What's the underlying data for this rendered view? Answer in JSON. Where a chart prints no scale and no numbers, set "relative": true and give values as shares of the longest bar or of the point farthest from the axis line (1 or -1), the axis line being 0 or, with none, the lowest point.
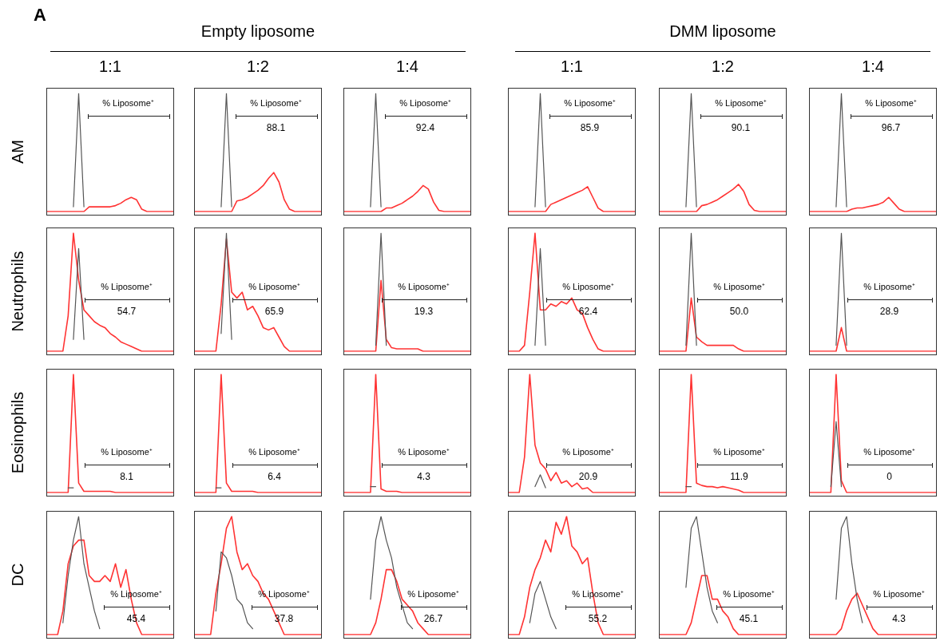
{
  "chart_data": [
    {
      "type": "line",
      "relative": true,
      "tick_labels": false,
      "title": "1:1",
      "ylabel": "AM",
      "annotations": [
        "A",
        "% Liposome⁺"
      ],
      "categories": [
        null,
        null,
        null,
        null,
        null,
        null,
        null,
        null,
        null,
        null,
        null,
        null,
        null,
        null,
        null,
        null,
        null,
        null,
        null,
        null,
        null,
        null,
        null,
        null,
        null
      ],
      "series": [
        {
          "color": "#555555",
          "values": [
            null,
            null,
            null,
            null,
            null,
            0.04,
            1,
            0.04,
            null,
            null,
            null,
            null,
            null,
            null,
            null,
            null,
            null,
            null,
            null,
            null,
            null,
            null,
            null,
            null,
            null
          ]
        },
        {
          "color": "#ff3333",
          "values": [
            0,
            0,
            0,
            0,
            0,
            0,
            0,
            0,
            0.04,
            0.04,
            0.04,
            0.04,
            0.04,
            0.05,
            0.07,
            0.1,
            0.12,
            0.1,
            0.02,
            0,
            0,
            0,
            0,
            0,
            0
          ]
        }
      ]
    },
    {
      "type": "line",
      "relative": true,
      "tick_labels": false,
      "title": "1:2",
      "subtitle": "Empty liposome",
      "annotations": [
        "% Liposome⁺",
        "88.1"
      ],
      "categories": [
        null,
        null,
        null,
        null,
        null,
        null,
        null,
        null,
        null,
        null,
        null,
        null,
        null,
        null,
        null,
        null,
        null,
        null,
        null,
        null,
        null,
        null,
        null,
        null,
        null
      ],
      "series": [
        {
          "color": "#555555",
          "values": [
            null,
            null,
            null,
            null,
            null,
            0.04,
            1,
            0.04,
            null,
            null,
            null,
            null,
            null,
            null,
            null,
            null,
            null,
            null,
            null,
            null,
            null,
            null,
            null,
            null,
            null
          ]
        },
        {
          "color": "#ff3333",
          "values": [
            0,
            0,
            0,
            0,
            0,
            0,
            0,
            0,
            0.09,
            0.1,
            0.12,
            0.15,
            0.18,
            0.22,
            0.28,
            0.33,
            0.25,
            0.1,
            0.02,
            0,
            0,
            0,
            0,
            0,
            0
          ]
        }
      ]
    },
    {
      "type": "line",
      "relative": true,
      "tick_labels": false,
      "title": "1:4",
      "annotations": [
        "% Liposome⁺",
        "92.4"
      ],
      "categories": [
        null,
        null,
        null,
        null,
        null,
        null,
        null,
        null,
        null,
        null,
        null,
        null,
        null,
        null,
        null,
        null,
        null,
        null,
        null,
        null,
        null,
        null,
        null,
        null,
        null
      ],
      "series": [
        {
          "color": "#555555",
          "values": [
            null,
            null,
            null,
            null,
            null,
            0.04,
            1,
            0.04,
            null,
            null,
            null,
            null,
            null,
            null,
            null,
            null,
            null,
            null,
            null,
            null,
            null,
            null,
            null,
            null,
            null
          ]
        },
        {
          "color": "#ff3333",
          "values": [
            0,
            0,
            0,
            0,
            0,
            0,
            0,
            0,
            0.03,
            0.03,
            0.05,
            0.07,
            0.1,
            0.13,
            0.17,
            0.22,
            0.19,
            0.08,
            0.01,
            0,
            0,
            0,
            0,
            0,
            0
          ]
        }
      ]
    },
    {
      "type": "line",
      "relative": true,
      "tick_labels": false,
      "title": "1:1",
      "annotations": [
        "% Liposome⁺",
        "85.9"
      ],
      "categories": [
        null,
        null,
        null,
        null,
        null,
        null,
        null,
        null,
        null,
        null,
        null,
        null,
        null,
        null,
        null,
        null,
        null,
        null,
        null,
        null,
        null,
        null,
        null,
        null,
        null
      ],
      "series": [
        {
          "color": "#555555",
          "values": [
            null,
            null,
            null,
            null,
            null,
            0.04,
            1,
            0.04,
            null,
            null,
            null,
            null,
            null,
            null,
            null,
            null,
            null,
            null,
            null,
            null,
            null,
            null,
            null,
            null,
            null
          ]
        },
        {
          "color": "#ff3333",
          "values": [
            0,
            0,
            0,
            0,
            0,
            0,
            0,
            0,
            0.06,
            0.08,
            0.1,
            0.12,
            0.14,
            0.16,
            0.18,
            0.21,
            0.12,
            0.03,
            0,
            0,
            0,
            0,
            0,
            0,
            0
          ]
        }
      ]
    },
    {
      "type": "line",
      "relative": true,
      "tick_labels": false,
      "title": "1:2",
      "subtitle": "DMM liposome",
      "annotations": [
        "% Liposome⁺",
        "90.1"
      ],
      "categories": [
        null,
        null,
        null,
        null,
        null,
        null,
        null,
        null,
        null,
        null,
        null,
        null,
        null,
        null,
        null,
        null,
        null,
        null,
        null,
        null,
        null,
        null,
        null,
        null,
        null
      ],
      "series": [
        {
          "color": "#555555",
          "values": [
            null,
            null,
            null,
            null,
            null,
            0.04,
            1,
            0.04,
            null,
            null,
            null,
            null,
            null,
            null,
            null,
            null,
            null,
            null,
            null,
            null,
            null,
            null,
            null,
            null,
            null
          ]
        },
        {
          "color": "#ff3333",
          "values": [
            0,
            0,
            0,
            0,
            0,
            0,
            0,
            0,
            0.05,
            0.06,
            0.08,
            0.1,
            0.13,
            0.16,
            0.19,
            0.23,
            0.17,
            0.06,
            0.01,
            0,
            0,
            0,
            0,
            0,
            0
          ]
        }
      ]
    },
    {
      "type": "line",
      "relative": true,
      "tick_labels": false,
      "title": "1:4",
      "annotations": [
        "% Liposome⁺",
        "96.7"
      ],
      "categories": [
        null,
        null,
        null,
        null,
        null,
        null,
        null,
        null,
        null,
        null,
        null,
        null,
        null,
        null,
        null,
        null,
        null,
        null,
        null,
        null,
        null,
        null,
        null,
        null,
        null
      ],
      "series": [
        {
          "color": "#555555",
          "values": [
            null,
            null,
            null,
            null,
            null,
            0.04,
            1,
            0.04,
            null,
            null,
            null,
            null,
            null,
            null,
            null,
            null,
            null,
            null,
            null,
            null,
            null,
            null,
            null,
            null,
            null
          ]
        },
        {
          "color": "#ff3333",
          "values": [
            0,
            0,
            0,
            0,
            0,
            0,
            0,
            0,
            0.02,
            0.03,
            0.03,
            0.04,
            0.05,
            0.06,
            0.08,
            0.12,
            0.07,
            0.02,
            0,
            0,
            0,
            0,
            0,
            0,
            0
          ]
        }
      ]
    },
    {
      "type": "line",
      "relative": true,
      "tick_labels": false,
      "ylabel": "Neutrophils",
      "annotations": [
        "% Liposome⁺",
        "54.7"
      ],
      "categories": [
        null,
        null,
        null,
        null,
        null,
        null,
        null,
        null,
        null,
        null,
        null,
        null,
        null,
        null,
        null,
        null,
        null,
        null,
        null,
        null,
        null,
        null,
        null,
        null,
        null
      ],
      "series": [
        {
          "color": "#555555",
          "values": [
            null,
            null,
            null,
            null,
            null,
            0.1,
            0.87,
            0.1,
            null,
            null,
            null,
            null,
            null,
            null,
            null,
            null,
            null,
            null,
            null,
            null,
            null,
            null,
            null,
            null,
            null
          ]
        },
        {
          "color": "#ff3333",
          "values": [
            0,
            0,
            0,
            0,
            0.3,
            1,
            0.6,
            0.35,
            0.3,
            0.25,
            0.22,
            0.2,
            0.15,
            0.12,
            0.08,
            0.06,
            0.04,
            0.02,
            0,
            0,
            0,
            0,
            0,
            0,
            0
          ]
        }
      ]
    },
    {
      "type": "line",
      "relative": true,
      "tick_labels": false,
      "annotations": [
        "% Liposome⁺",
        "65.9"
      ],
      "categories": [
        null,
        null,
        null,
        null,
        null,
        null,
        null,
        null,
        null,
        null,
        null,
        null,
        null,
        null,
        null,
        null,
        null,
        null,
        null,
        null,
        null,
        null,
        null,
        null,
        null
      ],
      "series": [
        {
          "color": "#555555",
          "values": [
            null,
            null,
            null,
            null,
            null,
            0.15,
            1,
            0.1,
            null,
            null,
            null,
            null,
            null,
            null,
            null,
            null,
            null,
            null,
            null,
            null,
            null,
            null,
            null,
            null,
            null
          ]
        },
        {
          "color": "#ff3333",
          "values": [
            0,
            0,
            0,
            0,
            0,
            0.4,
            0.95,
            0.5,
            0.45,
            0.5,
            0.35,
            0.38,
            0.3,
            0.2,
            0.18,
            0.2,
            0.12,
            0.04,
            0,
            0,
            0,
            0,
            0,
            0,
            0
          ]
        }
      ]
    },
    {
      "type": "line",
      "relative": true,
      "tick_labels": false,
      "annotations": [
        "% Liposome⁺",
        "19.3"
      ],
      "categories": [
        null,
        null,
        null,
        null,
        null,
        null,
        null,
        null,
        null,
        null,
        null,
        null,
        null,
        null,
        null,
        null,
        null,
        null,
        null,
        null,
        null,
        null,
        null,
        null,
        null
      ],
      "series": [
        {
          "color": "#555555",
          "values": [
            null,
            null,
            null,
            null,
            null,
            null,
            0.05,
            1,
            0.05,
            null,
            null,
            null,
            null,
            null,
            null,
            null,
            null,
            null,
            null,
            null,
            null,
            null,
            null,
            null,
            null
          ]
        },
        {
          "color": "#ff3333",
          "values": [
            0,
            0,
            0,
            0,
            0,
            0,
            0,
            0.6,
            0.1,
            0.03,
            0.02,
            0.02,
            0.02,
            0.02,
            0.02,
            0,
            0,
            0,
            0,
            0,
            0,
            0,
            0,
            0,
            0
          ]
        }
      ]
    },
    {
      "type": "line",
      "relative": true,
      "tick_labels": false,
      "annotations": [
        "% Liposome⁺",
        "62.4"
      ],
      "categories": [
        null,
        null,
        null,
        null,
        null,
        null,
        null,
        null,
        null,
        null,
        null,
        null,
        null,
        null,
        null,
        null,
        null,
        null,
        null,
        null,
        null,
        null,
        null,
        null,
        null
      ],
      "series": [
        {
          "color": "#555555",
          "values": [
            null,
            null,
            null,
            null,
            null,
            0.05,
            0.87,
            0.05,
            null,
            null,
            null,
            null,
            null,
            null,
            null,
            null,
            null,
            null,
            null,
            null,
            null,
            null,
            null,
            null,
            null
          ]
        },
        {
          "color": "#ff3333",
          "values": [
            0,
            0,
            0,
            0.05,
            0.5,
            1,
            0.35,
            0.35,
            0.4,
            0.38,
            0.42,
            0.4,
            0.45,
            0.35,
            0.32,
            0.2,
            0.1,
            0.02,
            0,
            0,
            0,
            0,
            0,
            0,
            0
          ]
        }
      ]
    },
    {
      "type": "line",
      "relative": true,
      "tick_labels": false,
      "annotations": [
        "% Liposome⁺",
        "50.0"
      ],
      "categories": [
        null,
        null,
        null,
        null,
        null,
        null,
        null,
        null,
        null,
        null,
        null,
        null,
        null,
        null,
        null,
        null,
        null,
        null,
        null,
        null,
        null,
        null,
        null,
        null,
        null
      ],
      "series": [
        {
          "color": "#555555",
          "values": [
            null,
            null,
            null,
            null,
            null,
            0.05,
            1,
            0.05,
            null,
            null,
            null,
            null,
            null,
            null,
            null,
            null,
            null,
            null,
            null,
            null,
            null,
            null,
            null,
            null,
            null
          ]
        },
        {
          "color": "#ff3333",
          "values": [
            0,
            0,
            0,
            0,
            0,
            0,
            0.45,
            0.12,
            0.08,
            0.05,
            0.05,
            0.05,
            0.05,
            0.05,
            0.05,
            0.02,
            0,
            0,
            0,
            0,
            0,
            0,
            0,
            0,
            0
          ]
        }
      ]
    },
    {
      "type": "line",
      "relative": true,
      "tick_labels": false,
      "annotations": [
        "% Liposome⁺",
        "28.9"
      ],
      "categories": [
        null,
        null,
        null,
        null,
        null,
        null,
        null,
        null,
        null,
        null,
        null,
        null,
        null,
        null,
        null,
        null,
        null,
        null,
        null,
        null,
        null,
        null,
        null,
        null,
        null
      ],
      "series": [
        {
          "color": "#555555",
          "values": [
            null,
            null,
            null,
            null,
            null,
            0.05,
            1,
            0.05,
            null,
            null,
            null,
            null,
            null,
            null,
            null,
            null,
            null,
            null,
            null,
            null,
            null,
            null,
            null,
            null,
            null
          ]
        },
        {
          "color": "#ff3333",
          "values": [
            0,
            0,
            0,
            0,
            0,
            0,
            0.2,
            0,
            0,
            0,
            0,
            0,
            0,
            0,
            0,
            0,
            0,
            0,
            0,
            0,
            0,
            0,
            0,
            0,
            0
          ]
        }
      ]
    },
    {
      "type": "line",
      "relative": true,
      "tick_labels": false,
      "ylabel": "Eosinophils",
      "annotations": [
        "% Liposome⁺",
        "8.1"
      ],
      "categories": [
        null,
        null,
        null,
        null,
        null,
        null,
        null,
        null,
        null,
        null,
        null,
        null,
        null,
        null,
        null,
        null,
        null,
        null,
        null,
        null,
        null,
        null,
        null,
        null,
        null
      ],
      "series": [
        {
          "color": "#555555",
          "values": [
            null,
            null,
            null,
            null,
            0.04,
            0.04,
            null,
            null,
            null,
            null,
            null,
            null,
            null,
            null,
            null,
            null,
            null,
            null,
            null,
            null,
            null,
            null,
            null,
            null,
            null
          ]
        },
        {
          "color": "#ff3333",
          "values": [
            0,
            0,
            0,
            0,
            0,
            1,
            0.08,
            0.01,
            0.01,
            0.01,
            0.01,
            0.01,
            0.01,
            0,
            0,
            0,
            0,
            0,
            0,
            0,
            0,
            0,
            0,
            0,
            0
          ]
        }
      ]
    },
    {
      "type": "line",
      "relative": true,
      "tick_labels": false,
      "annotations": [
        "% Liposome⁺",
        "6.4"
      ],
      "categories": [
        null,
        null,
        null,
        null,
        null,
        null,
        null,
        null,
        null,
        null,
        null,
        null,
        null,
        null,
        null,
        null,
        null,
        null,
        null,
        null,
        null,
        null,
        null,
        null,
        null
      ],
      "series": [
        {
          "color": "#555555",
          "values": [
            null,
            null,
            null,
            null,
            0.04,
            0.04,
            null,
            null,
            null,
            null,
            null,
            null,
            null,
            null,
            null,
            null,
            null,
            null,
            null,
            null,
            null,
            null,
            null,
            null,
            null
          ]
        },
        {
          "color": "#ff3333",
          "values": [
            0,
            0,
            0,
            0,
            0,
            1,
            0.08,
            0.01,
            0.01,
            0.01,
            0.01,
            0.01,
            0,
            0,
            0,
            0,
            0,
            0,
            0,
            0,
            0,
            0,
            0,
            0,
            0
          ]
        }
      ]
    },
    {
      "type": "line",
      "relative": true,
      "tick_labels": false,
      "annotations": [
        "% Liposome⁺",
        "4.3"
      ],
      "categories": [
        null,
        null,
        null,
        null,
        null,
        null,
        null,
        null,
        null,
        null,
        null,
        null,
        null,
        null,
        null,
        null,
        null,
        null,
        null,
        null,
        null,
        null,
        null,
        null,
        null
      ],
      "series": [
        {
          "color": "#555555",
          "values": [
            null,
            null,
            null,
            null,
            null,
            0.05,
            0.05,
            null,
            null,
            null,
            null,
            null,
            null,
            null,
            null,
            null,
            null,
            null,
            null,
            null,
            null,
            null,
            null,
            null,
            null
          ]
        },
        {
          "color": "#ff3333",
          "values": [
            0,
            0,
            0,
            0,
            0,
            0,
            1,
            0.03,
            0.01,
            0.01,
            0.01,
            0,
            0,
            0,
            0,
            0,
            0,
            0,
            0,
            0,
            0,
            0,
            0,
            0,
            0
          ]
        }
      ]
    },
    {
      "type": "line",
      "relative": true,
      "tick_labels": false,
      "annotations": [
        "% Liposome⁺",
        "20.9"
      ],
      "categories": [
        null,
        null,
        null,
        null,
        null,
        null,
        null,
        null,
        null,
        null,
        null,
        null,
        null,
        null,
        null,
        null,
        null,
        null,
        null,
        null,
        null,
        null,
        null,
        null,
        null
      ],
      "series": [
        {
          "color": "#555555",
          "values": [
            null,
            null,
            null,
            null,
            null,
            0.05,
            0.15,
            0.04,
            null,
            null,
            null,
            null,
            null,
            null,
            null,
            null,
            null,
            null,
            null,
            null,
            null,
            null,
            null,
            null,
            null
          ]
        },
        {
          "color": "#ff3333",
          "values": [
            0,
            0,
            0,
            0.3,
            1,
            0.4,
            0.25,
            0.2,
            0.1,
            0.17,
            0.08,
            0.1,
            0.05,
            0.08,
            0.03,
            0.04,
            0,
            0,
            0,
            0,
            0,
            0,
            0,
            0,
            0
          ]
        }
      ]
    },
    {
      "type": "line",
      "relative": true,
      "tick_labels": false,
      "annotations": [
        "% Liposome⁺",
        "11.9"
      ],
      "categories": [
        null,
        null,
        null,
        null,
        null,
        null,
        null,
        null,
        null,
        null,
        null,
        null,
        null,
        null,
        null,
        null,
        null,
        null,
        null,
        null,
        null,
        null,
        null,
        null,
        null
      ],
      "series": [
        {
          "color": "#555555",
          "values": [
            null,
            null,
            null,
            null,
            null,
            0.05,
            0.05,
            null,
            null,
            null,
            null,
            null,
            null,
            null,
            null,
            null,
            null,
            null,
            null,
            null,
            null,
            null,
            null,
            null,
            null
          ]
        },
        {
          "color": "#ff3333",
          "values": [
            0,
            0,
            0,
            0,
            0,
            0,
            1,
            0.08,
            0.06,
            0.05,
            0.05,
            0.04,
            0.05,
            0.04,
            0.03,
            0.02,
            0,
            0,
            0,
            0,
            0,
            0,
            0,
            0,
            0
          ]
        }
      ]
    },
    {
      "type": "line",
      "relative": true,
      "tick_labels": false,
      "annotations": [
        "% Liposome⁺",
        "0"
      ],
      "categories": [
        null,
        null,
        null,
        null,
        null,
        null,
        null,
        null,
        null,
        null,
        null,
        null,
        null,
        null,
        null,
        null,
        null,
        null,
        null,
        null,
        null,
        null,
        null,
        null,
        null
      ],
      "series": [
        {
          "color": "#555555",
          "values": [
            null,
            null,
            null,
            null,
            0.05,
            0.6,
            0.05,
            null,
            null,
            null,
            null,
            null,
            null,
            null,
            null,
            null,
            null,
            null,
            null,
            null,
            null,
            null,
            null,
            null,
            null
          ]
        },
        {
          "color": "#ff3333",
          "values": [
            0,
            0,
            0,
            0,
            0,
            1,
            0.1,
            0,
            0,
            0,
            0,
            0,
            0,
            0,
            0,
            0,
            0,
            0,
            0,
            0,
            0,
            0,
            0,
            0,
            0
          ]
        }
      ]
    },
    {
      "type": "line",
      "relative": true,
      "tick_labels": false,
      "ylabel": "DC",
      "annotations": [
        "% Liposome⁺",
        "45.4"
      ],
      "categories": [
        null,
        null,
        null,
        null,
        null,
        null,
        null,
        null,
        null,
        null,
        null,
        null,
        null,
        null,
        null,
        null,
        null,
        null,
        null,
        null,
        null,
        null,
        null,
        null,
        null
      ],
      "series": [
        {
          "color": "#555555",
          "values": [
            null,
            null,
            null,
            0.1,
            0.5,
            0.8,
            1,
            0.6,
            0.4,
            0.2,
            0.05,
            null,
            null,
            null,
            null,
            null,
            null,
            null,
            null,
            null,
            null,
            null,
            null,
            null,
            null
          ]
        },
        {
          "color": "#ff3333",
          "values": [
            0,
            0,
            0,
            0.2,
            0.6,
            0.75,
            0.8,
            0.8,
            0.5,
            0.45,
            0.45,
            0.5,
            0.45,
            0.6,
            0.4,
            0.55,
            0.3,
            0.1,
            0,
            0,
            0,
            0,
            0,
            0,
            0
          ]
        }
      ]
    },
    {
      "type": "line",
      "relative": true,
      "tick_labels": false,
      "annotations": [
        "% Liposome⁺",
        "37.8"
      ],
      "categories": [
        null,
        null,
        null,
        null,
        null,
        null,
        null,
        null,
        null,
        null,
        null,
        null,
        null,
        null,
        null,
        null,
        null,
        null,
        null,
        null,
        null,
        null,
        null,
        null,
        null
      ],
      "series": [
        {
          "color": "#555555",
          "values": [
            null,
            null,
            null,
            null,
            0.2,
            0.7,
            0.65,
            0.5,
            0.3,
            0.25,
            0.1,
            0.05,
            null,
            null,
            null,
            null,
            null,
            null,
            null,
            null,
            null,
            null,
            null,
            null,
            null
          ]
        },
        {
          "color": "#ff3333",
          "values": [
            0,
            0,
            0,
            0,
            0.35,
            0.6,
            0.9,
            1,
            0.7,
            0.55,
            0.6,
            0.5,
            0.45,
            0.35,
            0.3,
            0.2,
            0.1,
            0,
            0,
            0,
            0,
            0,
            0,
            0,
            0
          ]
        }
      ]
    },
    {
      "type": "line",
      "relative": true,
      "tick_labels": false,
      "annotations": [
        "% Liposome⁺",
        "26.7"
      ],
      "categories": [
        null,
        null,
        null,
        null,
        null,
        null,
        null,
        null,
        null,
        null,
        null,
        null,
        null,
        null,
        null,
        null,
        null,
        null,
        null,
        null,
        null,
        null,
        null,
        null,
        null
      ],
      "series": [
        {
          "color": "#555555",
          "values": [
            null,
            null,
            null,
            null,
            null,
            0.3,
            0.8,
            1,
            0.8,
            0.65,
            0.4,
            0.25,
            0.1,
            0.05,
            null,
            null,
            null,
            null,
            null,
            null,
            null,
            null,
            null,
            null,
            null
          ]
        },
        {
          "color": "#ff3333",
          "values": [
            0,
            0,
            0,
            0,
            0,
            0,
            0.1,
            0.3,
            0.55,
            0.55,
            0.45,
            0.3,
            0.25,
            0.2,
            0.1,
            0.05,
            0,
            0,
            0,
            0,
            0,
            0,
            0,
            0,
            0
          ]
        }
      ]
    },
    {
      "type": "line",
      "relative": true,
      "tick_labels": false,
      "annotations": [
        "% Liposome⁺",
        "55.2"
      ],
      "categories": [
        null,
        null,
        null,
        null,
        null,
        null,
        null,
        null,
        null,
        null,
        null,
        null,
        null,
        null,
        null,
        null,
        null,
        null,
        null,
        null,
        null,
        null,
        null,
        null,
        null
      ],
      "series": [
        {
          "color": "#555555",
          "values": [
            null,
            null,
            null,
            null,
            0.1,
            0.35,
            0.45,
            0.3,
            0.15,
            0.05,
            null,
            null,
            null,
            null,
            null,
            null,
            null,
            null,
            null,
            null,
            null,
            null,
            null,
            null,
            null
          ]
        },
        {
          "color": "#ff3333",
          "values": [
            0,
            0,
            0,
            0.15,
            0.4,
            0.55,
            0.65,
            0.8,
            0.7,
            0.95,
            0.85,
            1,
            0.75,
            0.7,
            0.6,
            0.65,
            0.35,
            0.1,
            0,
            0,
            0,
            0,
            0,
            0,
            0
          ]
        }
      ]
    },
    {
      "type": "line",
      "relative": true,
      "tick_labels": false,
      "annotations": [
        "% Liposome⁺",
        "45.1"
      ],
      "categories": [
        null,
        null,
        null,
        null,
        null,
        null,
        null,
        null,
        null,
        null,
        null,
        null,
        null,
        null,
        null,
        null,
        null,
        null,
        null,
        null,
        null,
        null,
        null,
        null,
        null
      ],
      "series": [
        {
          "color": "#555555",
          "values": [
            null,
            null,
            null,
            null,
            null,
            0.4,
            0.9,
            1,
            0.7,
            0.4,
            0.2,
            0.1,
            null,
            null,
            null,
            null,
            null,
            null,
            null,
            null,
            null,
            null,
            null,
            null,
            null
          ]
        },
        {
          "color": "#ff3333",
          "values": [
            0,
            0,
            0,
            0,
            0,
            0,
            0.1,
            0.3,
            0.5,
            0.5,
            0.3,
            0.3,
            0.2,
            0.15,
            0.05,
            0,
            0,
            0,
            0,
            0,
            0,
            0,
            0,
            0,
            0
          ]
        }
      ]
    },
    {
      "type": "line",
      "relative": true,
      "tick_labels": false,
      "annotations": [
        "% Liposome⁺",
        "4.3"
      ],
      "categories": [
        null,
        null,
        null,
        null,
        null,
        null,
        null,
        null,
        null,
        null,
        null,
        null,
        null,
        null,
        null,
        null,
        null,
        null,
        null,
        null,
        null,
        null,
        null,
        null,
        null
      ],
      "series": [
        {
          "color": "#555555",
          "values": [
            null,
            null,
            null,
            null,
            null,
            0.3,
            0.9,
            1,
            0.6,
            0.3,
            0.1,
            null,
            null,
            null,
            null,
            null,
            null,
            null,
            null,
            null,
            null,
            null,
            null,
            null,
            null
          ]
        },
        {
          "color": "#ff3333",
          "values": [
            0,
            0,
            0,
            0,
            0,
            0,
            0.05,
            0.2,
            0.3,
            0.35,
            0.25,
            0.15,
            0.05,
            0,
            0,
            0,
            0,
            0,
            0,
            0,
            0,
            0,
            0,
            0,
            0
          ]
        }
      ]
    }
  ]
}
